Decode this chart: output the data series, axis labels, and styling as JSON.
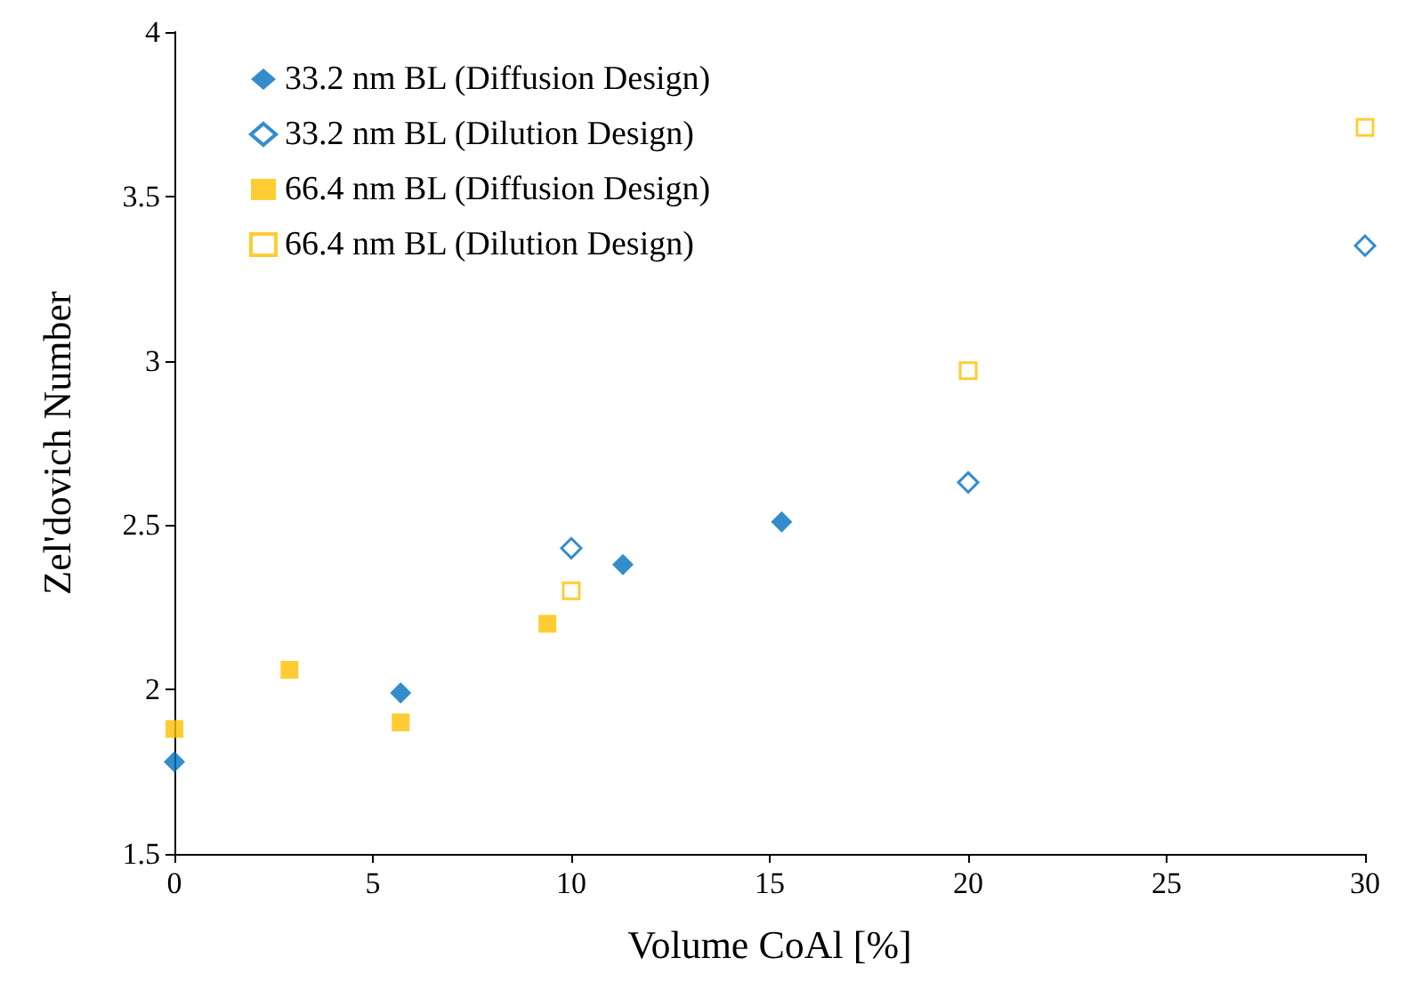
{
  "chart_data": {
    "type": "scatter",
    "xlabel": "Volume CoAl [%]",
    "ylabel": "Zel'dovich Number",
    "xlim": [
      0,
      30
    ],
    "xticks": [
      0,
      5,
      10,
      15,
      20,
      25,
      30
    ],
    "ylim": [
      1.5,
      4
    ],
    "yticks": [
      1.5,
      2,
      2.5,
      3,
      3.5,
      4
    ],
    "grid": false,
    "legend": "top left",
    "series": [
      {
        "name": "33.2 nm BL (Diffusion Design)",
        "color": "#0070c0",
        "marker": "diamond",
        "x": [
          0,
          5.7,
          11.3,
          15.3
        ],
        "values": [
          1.78,
          1.99,
          2.38,
          2.51
        ]
      },
      {
        "name": "33.2 nm BL (Dilution Design)",
        "color": "#0070c0",
        "marker": "diamond-open",
        "x": [
          10,
          20,
          30
        ],
        "values": [
          2.43,
          2.63,
          3.35
        ]
      },
      {
        "name": "66.4 nm BL (Diffusion Design)",
        "color": "#ffc000",
        "marker": "square",
        "x": [
          0,
          2.9,
          5.7,
          9.4
        ],
        "values": [
          1.88,
          2.06,
          1.9,
          2.2
        ]
      },
      {
        "name": "66.4 nm BL (Dilution Design)",
        "color": "#ffc000",
        "marker": "square-open",
        "x": [
          10,
          20,
          30
        ],
        "values": [
          2.3,
          2.97,
          3.71
        ]
      }
    ]
  }
}
